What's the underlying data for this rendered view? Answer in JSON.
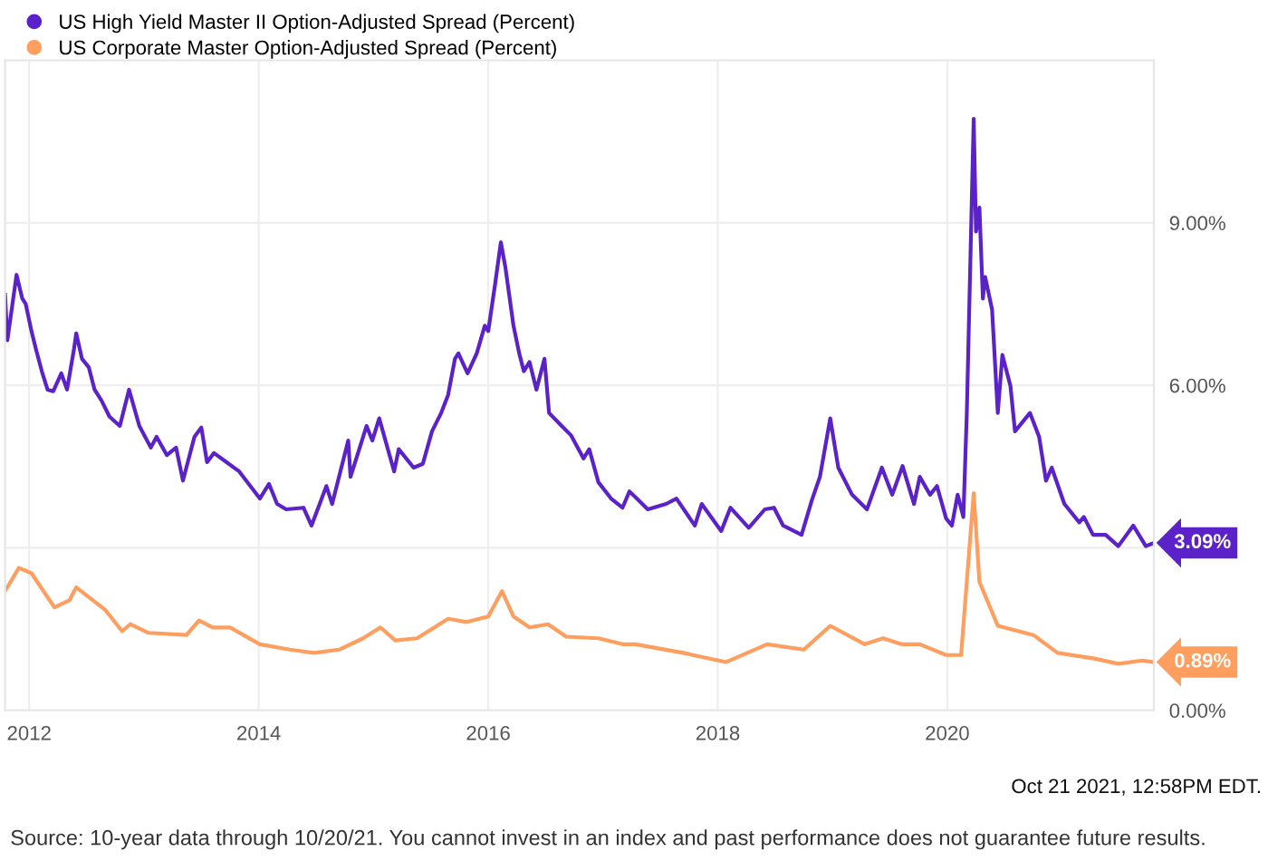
{
  "chart_data": {
    "type": "line",
    "xlim": [
      2011.79,
      2021.8
    ],
    "xticks": [
      2012,
      2014,
      2016,
      2018,
      2020
    ],
    "ylim": [
      0,
      12
    ],
    "yticks": [
      {
        "value": 0,
        "label": "0.00%"
      },
      {
        "value": 3,
        "label": null
      },
      {
        "value": 6,
        "label": "6.00%"
      },
      {
        "value": 9,
        "label": "9.00%"
      }
    ],
    "grid": true,
    "legend": "top left",
    "series": [
      {
        "name": "US High Yield Master II Option-Adjusted Spread (Percent)",
        "color": "#5b22c9",
        "x": [
          2011.79,
          2011.81,
          2011.89,
          2011.94,
          2011.97,
          2012.02,
          2012.06,
          2012.11,
          2012.16,
          2012.21,
          2012.28,
          2012.33,
          2012.39,
          2012.41,
          2012.46,
          2012.52,
          2012.57,
          2012.63,
          2012.7,
          2012.79,
          2012.87,
          2012.96,
          2013.06,
          2013.11,
          2013.2,
          2013.28,
          2013.34,
          2013.44,
          2013.5,
          2013.55,
          2013.61,
          2013.72,
          2013.83,
          2014.01,
          2014.09,
          2014.16,
          2014.24,
          2014.39,
          2014.46,
          2014.59,
          2014.64,
          2014.78,
          2014.8,
          2014.94,
          2014.99,
          2015.05,
          2015.18,
          2015.22,
          2015.35,
          2015.43,
          2015.51,
          2015.59,
          2015.65,
          2015.71,
          2015.74,
          2015.82,
          2015.9,
          2015.97,
          2016.0,
          2016.06,
          2016.11,
          2016.15,
          2016.22,
          2016.27,
          2016.31,
          2016.36,
          2016.42,
          2016.49,
          2016.53,
          2016.64,
          2016.72,
          2016.83,
          2016.88,
          2016.96,
          2017.07,
          2017.17,
          2017.23,
          2017.28,
          2017.39,
          2017.55,
          2017.64,
          2017.8,
          2017.86,
          2018.03,
          2018.11,
          2018.27,
          2018.41,
          2018.49,
          2018.57,
          2018.73,
          2018.82,
          2018.89,
          2018.98,
          2019.05,
          2019.17,
          2019.3,
          2019.43,
          2019.52,
          2019.61,
          2019.71,
          2019.76,
          2019.85,
          2019.91,
          2019.99,
          2020.04,
          2020.09,
          2020.14,
          2020.17,
          2020.23,
          2020.25,
          2020.28,
          2020.31,
          2020.33,
          2020.39,
          2020.44,
          2020.48,
          2020.55,
          2020.59,
          2020.72,
          2020.8,
          2020.86,
          2020.91,
          2021.02,
          2021.15,
          2021.19,
          2021.27,
          2021.38,
          2021.49,
          2021.62,
          2021.73,
          2021.8
        ],
        "values": [
          7.67,
          6.83,
          8.04,
          7.6,
          7.5,
          7.0,
          6.66,
          6.26,
          5.92,
          5.89,
          6.22,
          5.92,
          6.66,
          6.96,
          6.49,
          6.33,
          5.92,
          5.72,
          5.42,
          5.25,
          5.92,
          5.25,
          4.85,
          5.05,
          4.71,
          4.85,
          4.24,
          5.05,
          5.22,
          4.58,
          4.75,
          4.58,
          4.41,
          3.91,
          4.18,
          3.81,
          3.71,
          3.74,
          3.41,
          4.14,
          3.81,
          4.98,
          4.31,
          5.25,
          4.98,
          5.39,
          4.41,
          4.82,
          4.48,
          4.55,
          5.15,
          5.49,
          5.82,
          6.49,
          6.59,
          6.22,
          6.59,
          7.1,
          7.0,
          7.87,
          8.64,
          8.17,
          7.1,
          6.59,
          6.26,
          6.43,
          5.92,
          6.49,
          5.49,
          5.25,
          5.08,
          4.65,
          4.82,
          4.21,
          3.91,
          3.74,
          4.04,
          3.94,
          3.71,
          3.81,
          3.91,
          3.41,
          3.81,
          3.31,
          3.74,
          3.37,
          3.71,
          3.74,
          3.41,
          3.24,
          3.88,
          4.31,
          5.39,
          4.48,
          3.98,
          3.71,
          4.48,
          3.98,
          4.51,
          3.81,
          4.31,
          3.98,
          4.14,
          3.54,
          3.41,
          3.98,
          3.57,
          5.49,
          10.92,
          8.84,
          9.28,
          7.6,
          8.0,
          7.4,
          5.49,
          6.56,
          5.99,
          5.15,
          5.49,
          5.05,
          4.24,
          4.48,
          3.81,
          3.47,
          3.57,
          3.24,
          3.24,
          3.03,
          3.41,
          3.03,
          3.09
        ],
        "value_labels": [
          null,
          null,
          null,
          null,
          null,
          null,
          null,
          null,
          null,
          null,
          null,
          null,
          null,
          null,
          null,
          null,
          null,
          null,
          null,
          null,
          null,
          null,
          null,
          null,
          null,
          null,
          null,
          null,
          null,
          null,
          null,
          null,
          null,
          null,
          null,
          null,
          null,
          null,
          null,
          null,
          null,
          null,
          null,
          null,
          null,
          null,
          null,
          null,
          null,
          null,
          null,
          null,
          null,
          null,
          null,
          null,
          null,
          null,
          null,
          null,
          null,
          null,
          null,
          null,
          null,
          null,
          null,
          null,
          null,
          null,
          null,
          null,
          null,
          null,
          null,
          null,
          null,
          null,
          null,
          null,
          null,
          null,
          null,
          null,
          null,
          null,
          null,
          null,
          null,
          null,
          null,
          null,
          null,
          null,
          null,
          null,
          null,
          null,
          null,
          null,
          null,
          null,
          null,
          null,
          null,
          null,
          null,
          null,
          null,
          null,
          null,
          null,
          null,
          null,
          null,
          null,
          null,
          null,
          null,
          null,
          null,
          null,
          null,
          null,
          null,
          null,
          null,
          null,
          null,
          null,
          "3.09%"
        ]
      },
      {
        "name": "US Corporate Master Option-Adjusted Spread (Percent)",
        "color": "#ff9e5e",
        "x": [
          2011.79,
          2011.91,
          2012.02,
          2012.22,
          2012.35,
          2012.41,
          2012.66,
          2012.81,
          2012.88,
          2013.04,
          2013.37,
          2013.48,
          2013.6,
          2013.75,
          2014.01,
          2014.27,
          2014.48,
          2014.7,
          2014.91,
          2015.06,
          2015.19,
          2015.38,
          2015.65,
          2015.81,
          2016.0,
          2016.12,
          2016.22,
          2016.36,
          2016.52,
          2016.68,
          2016.96,
          2017.17,
          2017.28,
          2017.7,
          2018.07,
          2018.43,
          2018.75,
          2018.98,
          2019.28,
          2019.44,
          2019.6,
          2019.76,
          2019.99,
          2020.12,
          2020.23,
          2020.28,
          2020.44,
          2020.75,
          2020.96,
          2021.27,
          2021.49,
          2021.7,
          2021.8
        ],
        "values": [
          2.2,
          2.63,
          2.53,
          1.9,
          2.03,
          2.27,
          1.86,
          1.46,
          1.59,
          1.43,
          1.39,
          1.66,
          1.53,
          1.53,
          1.22,
          1.12,
          1.06,
          1.12,
          1.33,
          1.53,
          1.29,
          1.33,
          1.69,
          1.63,
          1.73,
          2.2,
          1.73,
          1.53,
          1.59,
          1.36,
          1.33,
          1.22,
          1.22,
          1.06,
          0.89,
          1.22,
          1.12,
          1.56,
          1.22,
          1.33,
          1.22,
          1.22,
          1.02,
          1.02,
          4.01,
          2.37,
          1.56,
          1.39,
          1.06,
          0.96,
          0.86,
          0.92,
          0.89
        ],
        "value_labels": [
          null,
          null,
          null,
          null,
          null,
          null,
          null,
          null,
          null,
          null,
          null,
          null,
          null,
          null,
          null,
          null,
          null,
          null,
          null,
          null,
          null,
          null,
          null,
          null,
          null,
          null,
          null,
          null,
          null,
          null,
          null,
          null,
          null,
          null,
          null,
          null,
          null,
          null,
          null,
          null,
          null,
          null,
          null,
          null,
          null,
          null,
          null,
          null,
          null,
          null,
          null,
          null,
          "0.89%"
        ]
      }
    ],
    "annotations": [
      "Oct 21 2021, 12:58PM EDT.",
      "Source: 10-year data through 10/20/21. You cannot invest in an index and past performance does not guarantee future results."
    ]
  }
}
